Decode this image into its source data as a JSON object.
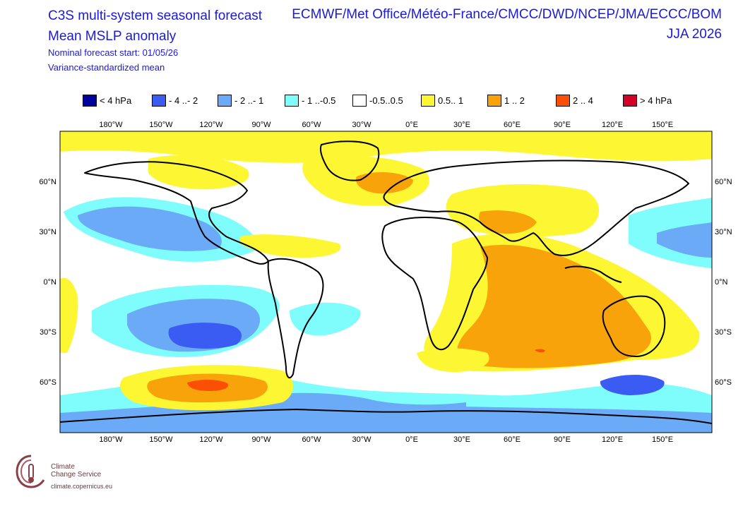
{
  "header": {
    "title_line1": "C3S multi-system seasonal forecast",
    "title_line2": "Mean MSLP anomaly",
    "subtitle_line1": "Nominal forecast start: 01/05/26",
    "subtitle_line2": "Variance-standardized mean",
    "providers": "ECMWF/Met Office/Météo-France/CMCC/DWD/NCEP/JMA/ECCC/BOM",
    "season": "JJA 2026"
  },
  "legend": [
    {
      "label": "< 4 hPa",
      "color": "#00009c"
    },
    {
      "label": "- 4 ..- 2",
      "color": "#3a5cf2"
    },
    {
      "label": "- 2 ..- 1",
      "color": "#6aaaf6"
    },
    {
      "label": "- 1 ..-0.5",
      "color": "#7ffcfc"
    },
    {
      "label": "-0.5..0.5",
      "color": "#ffffff"
    },
    {
      "label": "0.5.. 1",
      "color": "#fdf633"
    },
    {
      "label": "1 .. 2",
      "color": "#f8a30a"
    },
    {
      "label": "2 .. 4",
      "color": "#fb4f05"
    },
    {
      "label": ">  4 hPa",
      "color": "#d30028"
    }
  ],
  "axes": {
    "lon_labels": [
      "180°W",
      "150°W",
      "120°W",
      "90°W",
      "60°W",
      "30°W",
      "0°E",
      "30°E",
      "60°E",
      "90°E",
      "120°E",
      "150°E"
    ],
    "lat_labels": [
      "60°N",
      "30°N",
      "0°N",
      "30°S",
      "60°S"
    ]
  },
  "logo": {
    "line1": "Climate",
    "line2": "Change Service",
    "url": "climate.copernicus.eu"
  }
}
